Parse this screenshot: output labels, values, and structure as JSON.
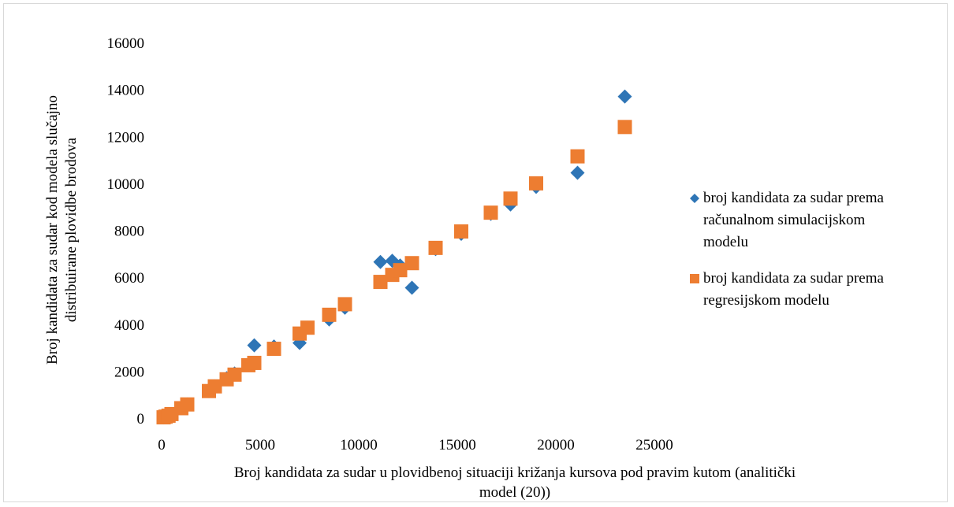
{
  "chart_data": {
    "type": "scatter",
    "xlabel_lines": [
      "Broj kandidata za sudar u plovidbenoj situaciji križanja kursova pod pravim kutom (analitički",
      "model (20))"
    ],
    "ylabel_lines": [
      "Broj kandidata za sudar kod modela slučajno",
      "distribuirane plovidbe brodova"
    ],
    "xlim": [
      0,
      25000
    ],
    "ylim": [
      0,
      16000
    ],
    "x_ticks": [
      0,
      5000,
      10000,
      15000,
      20000,
      25000
    ],
    "y_ticks": [
      0,
      2000,
      4000,
      6000,
      8000,
      10000,
      12000,
      14000,
      16000
    ],
    "grid": false,
    "legend_position": "right",
    "series": [
      {
        "name": "broj kandidata za sudar prema računalnom simulacijskom modelu",
        "name_lines": [
          "broj kandidata za sudar prema",
          "računalnom simulacijskom",
          "modelu"
        ],
        "marker": "diamond",
        "color": "#2e75b6",
        "points": [
          [
            100,
            30
          ],
          [
            200,
            60
          ],
          [
            350,
            100
          ],
          [
            500,
            170
          ],
          [
            1000,
            420
          ],
          [
            1300,
            580
          ],
          [
            2400,
            1150
          ],
          [
            2700,
            1350
          ],
          [
            3300,
            1700
          ],
          [
            3700,
            1900
          ],
          [
            4400,
            2250
          ],
          [
            4700,
            3100
          ],
          [
            5700,
            3050
          ],
          [
            7000,
            3200
          ],
          [
            7400,
            3850
          ],
          [
            8500,
            4200
          ],
          [
            9300,
            4700
          ],
          [
            11100,
            6650
          ],
          [
            11700,
            6700
          ],
          [
            12100,
            6500
          ],
          [
            12700,
            5550
          ],
          [
            13900,
            7200
          ],
          [
            15200,
            7850
          ],
          [
            16700,
            8700
          ],
          [
            17700,
            9100
          ],
          [
            19000,
            9850
          ],
          [
            21100,
            10450
          ],
          [
            23500,
            13700
          ]
        ]
      },
      {
        "name": "broj kandidata za sudar prema regresijskom modelu",
        "name_lines": [
          "broj kandidata za sudar prema",
          "regresijskom modelu"
        ],
        "marker": "square",
        "color": "#ed7d31",
        "points": [
          [
            100,
            30
          ],
          [
            200,
            60
          ],
          [
            350,
            100
          ],
          [
            500,
            170
          ],
          [
            1000,
            420
          ],
          [
            1300,
            580
          ],
          [
            2400,
            1150
          ],
          [
            2700,
            1350
          ],
          [
            3300,
            1650
          ],
          [
            3700,
            1850
          ],
          [
            4400,
            2250
          ],
          [
            4700,
            2350
          ],
          [
            5700,
            2950
          ],
          [
            7000,
            3600
          ],
          [
            7400,
            3850
          ],
          [
            8500,
            4400
          ],
          [
            9300,
            4850
          ],
          [
            11100,
            5800
          ],
          [
            11700,
            6100
          ],
          [
            12100,
            6300
          ],
          [
            12700,
            6600
          ],
          [
            13900,
            7250
          ],
          [
            15200,
            7950
          ],
          [
            16700,
            8750
          ],
          [
            17700,
            9350
          ],
          [
            19000,
            10000
          ],
          [
            21100,
            11150
          ],
          [
            23500,
            12400
          ]
        ]
      }
    ]
  }
}
